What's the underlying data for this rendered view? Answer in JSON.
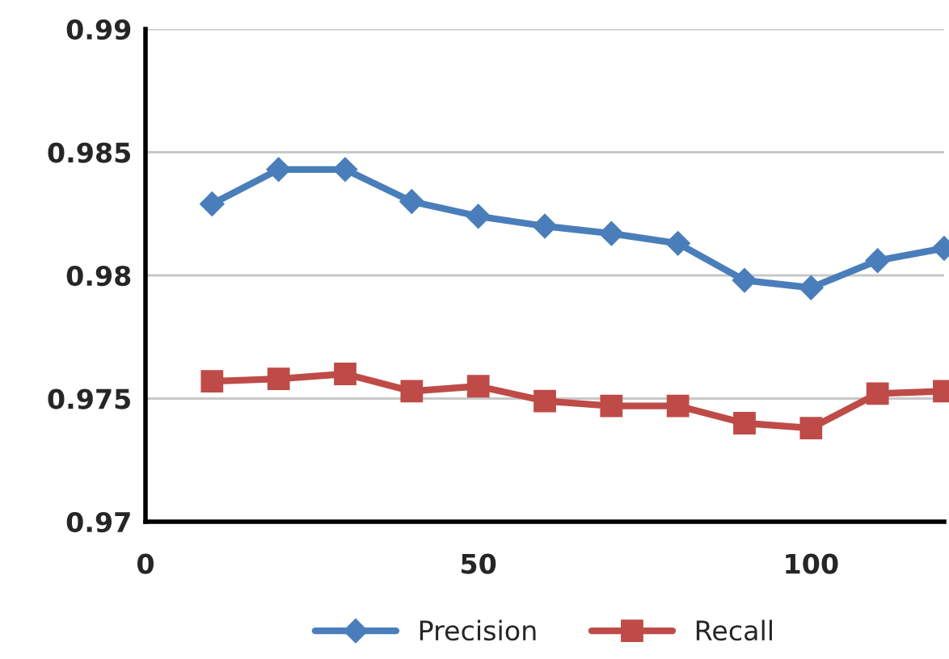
{
  "chart_data": {
    "type": "line",
    "x": [
      10,
      20,
      30,
      40,
      50,
      60,
      70,
      80,
      90,
      100,
      110,
      120
    ],
    "series": [
      {
        "name": "Precision",
        "color": "#4a7ebb",
        "marker": "diamond",
        "values": [
          0.9829,
          0.9843,
          0.9843,
          0.983,
          0.9824,
          0.982,
          0.9817,
          0.9813,
          0.9798,
          0.9795,
          0.9806,
          0.9811
        ]
      },
      {
        "name": "Recall",
        "color": "#be4b48",
        "marker": "square",
        "values": [
          0.9757,
          0.9758,
          0.976,
          0.9753,
          0.9755,
          0.9749,
          0.9747,
          0.9747,
          0.974,
          0.9738,
          0.9752,
          0.9753
        ]
      }
    ],
    "xlim": [
      0,
      120
    ],
    "xticks": [
      0,
      50,
      100
    ],
    "ylim": [
      0.97,
      0.99
    ],
    "yticks": [
      {
        "value": 0.97,
        "label": "0.97"
      },
      {
        "value": 0.975,
        "label": "0.975"
      },
      {
        "value": 0.98,
        "label": "0.98"
      },
      {
        "value": 0.985,
        "label": "0.985"
      },
      {
        "value": 0.99,
        "label": "0.99"
      }
    ],
    "grid": "y",
    "legend": "bottom",
    "line_style": "solid"
  }
}
